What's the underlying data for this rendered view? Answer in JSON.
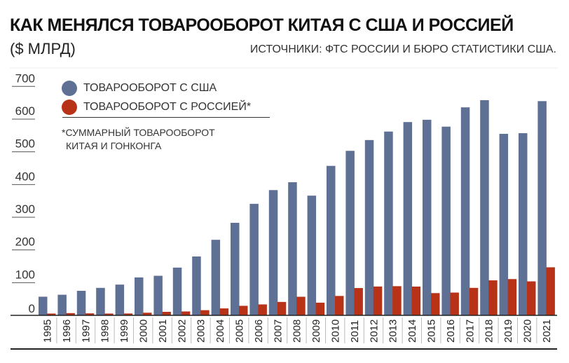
{
  "header": {
    "title": "КАК МЕНЯЛСЯ ТОВАРООБОРОТ КИТАЯ С США И РОССИЕЙ",
    "unit": "($ МЛРД)",
    "source": "ИСТОЧНИКИ: ФТС РОССИИ И БЮРО СТАТИСТИКИ США."
  },
  "colors": {
    "usa": "#5f7095",
    "russia": "#b83218"
  },
  "chart_data": {
    "type": "bar",
    "title": "КАК МЕНЯЛСЯ ТОВАРООБОРОТ КИТАЯ С США И РОССИЕЙ",
    "ylabel": "$ млрд",
    "ylim": [
      0,
      700
    ],
    "yticks": [
      "0",
      "100",
      "200",
      "300",
      "400",
      "500",
      "600",
      "700"
    ],
    "categories": [
      "1995",
      "1996",
      "1997",
      "1998",
      "1999",
      "2000",
      "2001",
      "2002",
      "2003",
      "2004",
      "2005",
      "2006",
      "2007",
      "2008",
      "2009",
      "2010",
      "2011",
      "2012",
      "2013",
      "2014",
      "2015",
      "2016",
      "2017",
      "2018",
      "2019",
      "2020",
      "2021"
    ],
    "series": [
      {
        "name": "ТОВАРООБОРОТ С США",
        "values": [
          57,
          63,
          75,
          84,
          94,
          116,
          121,
          146,
          180,
          231,
          283,
          341,
          383,
          407,
          366,
          457,
          503,
          536,
          562,
          591,
          598,
          577,
          636,
          658,
          555,
          557,
          655
        ]
      },
      {
        "name": "ТОВАРООБОРОТ С РОССИЕЙ*",
        "values": [
          5.5,
          6.8,
          6.1,
          5.5,
          5.7,
          8,
          10.7,
          11.9,
          15.8,
          21.2,
          29.1,
          33.4,
          41,
          56.8,
          38.8,
          59.3,
          83.5,
          88.2,
          89.2,
          88,
          68,
          69.6,
          84,
          107,
          110.9,
          103.9,
          146.9
        ]
      }
    ],
    "legend": "top-left",
    "note": [
      "*СУММАРНЫЙ ТОВАРООБОРОТ",
      "КИТАЯ И ГОНКОНГА"
    ]
  }
}
